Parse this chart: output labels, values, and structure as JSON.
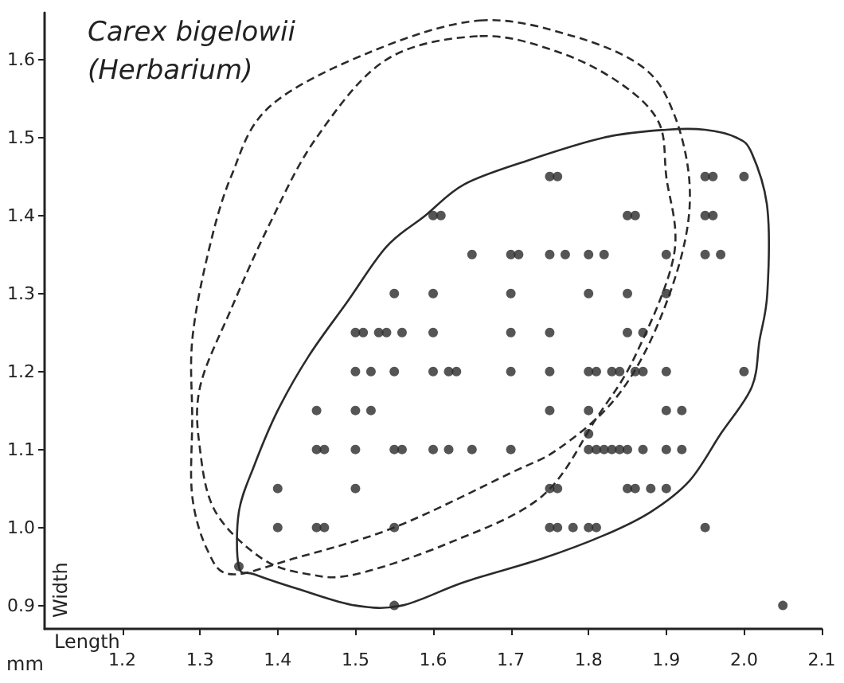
{
  "chart_data": {
    "type": "scatter",
    "title": "Carex bigelowii",
    "subtitle": "(Herbarium)",
    "xlabel": "Length",
    "ylabel": "Width",
    "annotations": [
      "mm"
    ],
    "xlim": [
      1.1,
      2.1
    ],
    "xticks": [
      1.2,
      1.3,
      1.4,
      1.5,
      1.6,
      1.7,
      1.8,
      1.9,
      {
        "value": 2,
        "label": "2.0"
      },
      2.1
    ],
    "ylim": [
      0.87,
      1.66
    ],
    "yticks": [
      0.9,
      {
        "value": 1,
        "label": "1.0"
      },
      1.1,
      1.2,
      1.3,
      1.4,
      1.5,
      1.6
    ],
    "grid": false,
    "marker": "circle",
    "series": [
      {
        "color": "#2b2b2b",
        "x": [
          1.75,
          1.76,
          1.95,
          1.96,
          2.0,
          1.6,
          1.61,
          1.85,
          1.86,
          1.95,
          1.96,
          1.65,
          1.7,
          1.71,
          1.75,
          1.77,
          1.8,
          1.82,
          1.9,
          1.95,
          1.97,
          1.55,
          1.6,
          1.7,
          1.8,
          1.85,
          1.9,
          1.5,
          1.51,
          1.53,
          1.54,
          1.56,
          1.6,
          1.7,
          1.75,
          1.85,
          1.87,
          1.5,
          1.52,
          1.55,
          1.6,
          1.62,
          1.63,
          1.7,
          1.75,
          1.8,
          1.81,
          1.83,
          1.84,
          1.86,
          1.87,
          1.9,
          2.0,
          1.45,
          1.5,
          1.52,
          1.75,
          1.8,
          1.9,
          1.92,
          1.8,
          1.45,
          1.46,
          1.5,
          1.55,
          1.56,
          1.6,
          1.62,
          1.65,
          1.7,
          1.8,
          1.81,
          1.82,
          1.83,
          1.84,
          1.85,
          1.87,
          1.9,
          1.92,
          1.4,
          1.5,
          1.75,
          1.76,
          1.85,
          1.86,
          1.88,
          1.9,
          1.4,
          1.45,
          1.46,
          1.55,
          1.75,
          1.76,
          1.78,
          1.8,
          1.81,
          1.95,
          1.35,
          1.55,
          2.05
        ],
        "values": [
          1.45,
          1.45,
          1.45,
          1.45,
          1.45,
          1.4,
          1.4,
          1.4,
          1.4,
          1.4,
          1.4,
          1.35,
          1.35,
          1.35,
          1.35,
          1.35,
          1.35,
          1.35,
          1.35,
          1.35,
          1.35,
          1.3,
          1.3,
          1.3,
          1.3,
          1.3,
          1.3,
          1.25,
          1.25,
          1.25,
          1.25,
          1.25,
          1.25,
          1.25,
          1.25,
          1.25,
          1.25,
          1.2,
          1.2,
          1.2,
          1.2,
          1.2,
          1.2,
          1.2,
          1.2,
          1.2,
          1.2,
          1.2,
          1.2,
          1.2,
          1.2,
          1.2,
          1.2,
          1.15,
          1.15,
          1.15,
          1.15,
          1.15,
          1.15,
          1.15,
          1.12,
          1.1,
          1.1,
          1.1,
          1.1,
          1.1,
          1.1,
          1.1,
          1.1,
          1.1,
          1.1,
          1.1,
          1.1,
          1.1,
          1.1,
          1.1,
          1.1,
          1.1,
          1.1,
          1.05,
          1.05,
          1.05,
          1.05,
          1.05,
          1.05,
          1.05,
          1.05,
          1.0,
          1.0,
          1.0,
          1.0,
          1.0,
          1.0,
          1.0,
          1.0,
          1.0,
          1.0,
          0.95,
          0.9,
          0.9
        ]
      }
    ]
  }
}
